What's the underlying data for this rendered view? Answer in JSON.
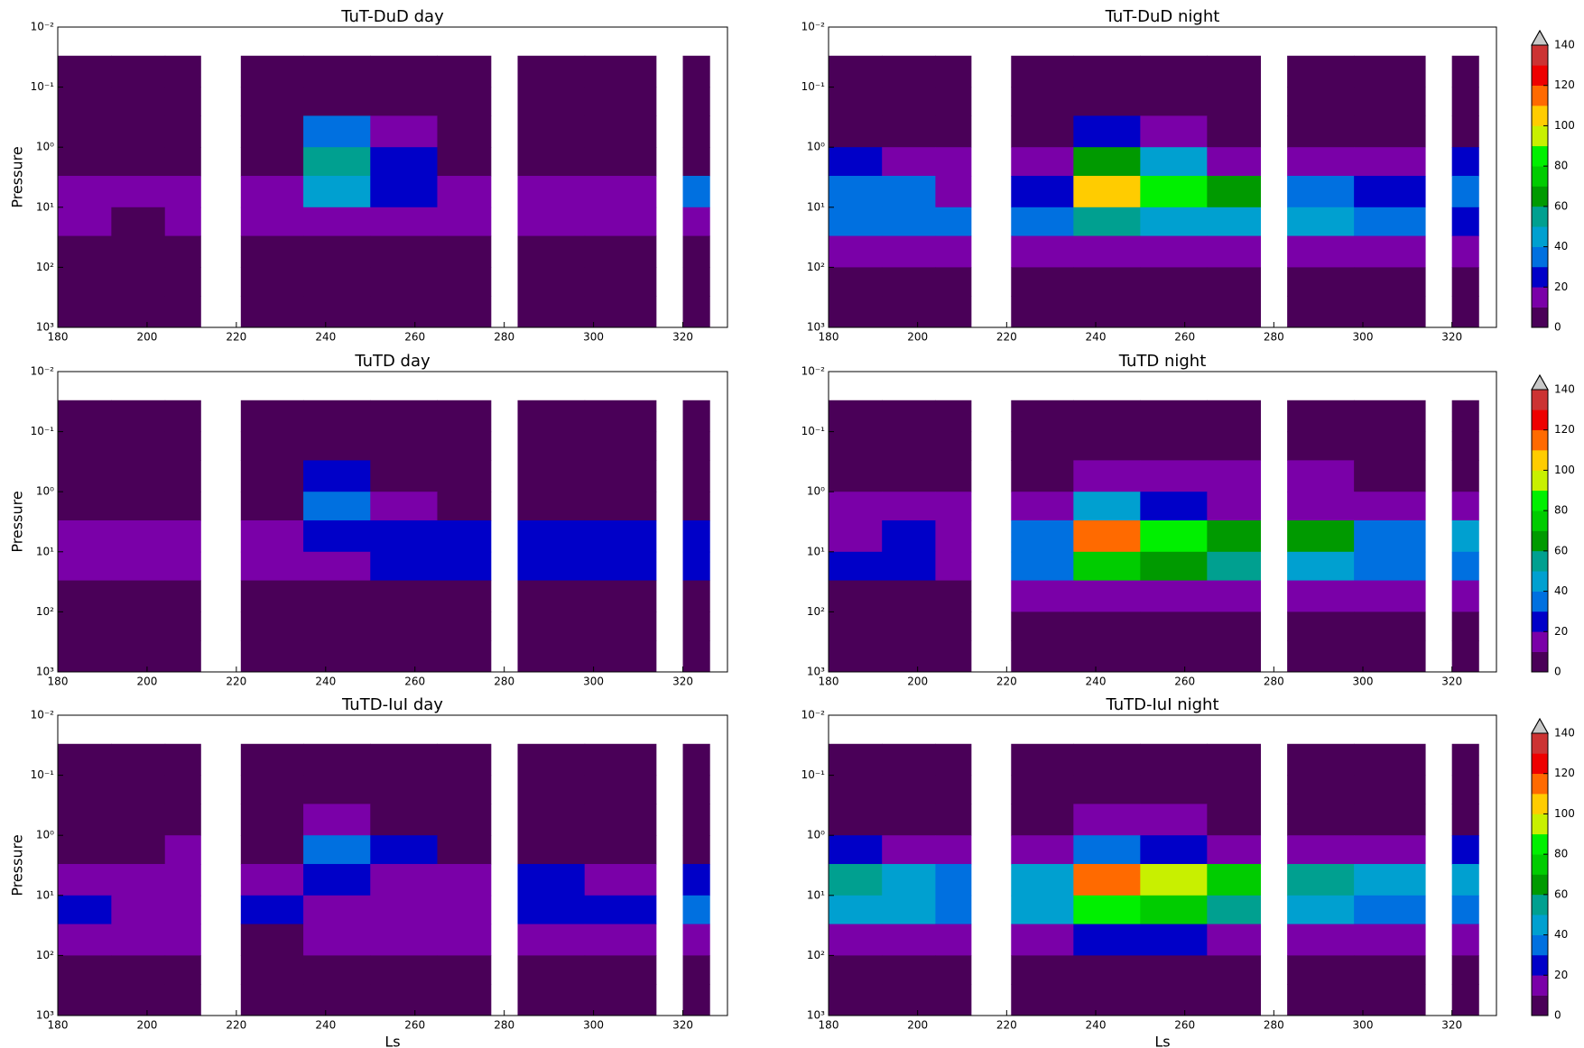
{
  "chart_data": [
    {
      "type": "contour",
      "title": "TuT-DuD day",
      "ylabel": "Pressure",
      "x_bins": [
        180,
        192,
        204,
        212,
        221,
        235,
        250,
        265,
        277,
        283,
        298,
        314,
        320,
        326
      ],
      "y_bins": [
        0.03,
        0.1,
        0.3,
        1,
        3,
        10,
        30,
        100,
        300,
        1000
      ],
      "z": [
        [
          5,
          5,
          5,
          null,
          5,
          5,
          5,
          5,
          null,
          5,
          5,
          null,
          5
        ],
        [
          5,
          5,
          5,
          null,
          5,
          5,
          5,
          5,
          null,
          5,
          5,
          null,
          5
        ],
        [
          5,
          5,
          5,
          null,
          5,
          30,
          15,
          5,
          null,
          5,
          5,
          null,
          5
        ],
        [
          5,
          5,
          5,
          null,
          5,
          55,
          25,
          5,
          null,
          5,
          5,
          null,
          5
        ],
        [
          15,
          15,
          15,
          null,
          15,
          40,
          25,
          15,
          null,
          15,
          15,
          null,
          30
        ],
        [
          15,
          5,
          15,
          null,
          15,
          15,
          15,
          15,
          null,
          15,
          15,
          null,
          15
        ],
        [
          5,
          5,
          5,
          null,
          5,
          5,
          5,
          5,
          null,
          5,
          5,
          null,
          5
        ],
        [
          5,
          5,
          5,
          null,
          5,
          5,
          5,
          5,
          null,
          5,
          5,
          null,
          5
        ],
        [
          5,
          5,
          5,
          null,
          5,
          5,
          5,
          5,
          null,
          5,
          5,
          null,
          5
        ]
      ],
      "xlim": [
        180,
        330
      ],
      "ylim": [
        1000,
        0.01
      ],
      "log_y": true,
      "xticks": [
        180,
        200,
        220,
        240,
        260,
        280,
        300,
        320
      ],
      "yticks": [
        {
          "value": 0.01,
          "label": "10⁻²"
        },
        {
          "value": 0.1,
          "label": "10⁻¹"
        },
        {
          "value": 1,
          "label": "10⁰"
        },
        {
          "value": 10,
          "label": "10¹"
        },
        {
          "value": 100,
          "label": "10²"
        },
        {
          "value": 1000,
          "label": "10³"
        }
      ]
    },
    {
      "type": "contour",
      "title": "TuT-DuD night",
      "x_bins": [
        180,
        192,
        204,
        212,
        221,
        235,
        250,
        265,
        277,
        283,
        298,
        314,
        320,
        326
      ],
      "y_bins": [
        0.03,
        0.1,
        0.3,
        1,
        3,
        10,
        30,
        100,
        300,
        1000
      ],
      "z": [
        [
          5,
          5,
          5,
          null,
          5,
          5,
          5,
          5,
          null,
          5,
          5,
          null,
          5
        ],
        [
          5,
          5,
          5,
          null,
          5,
          5,
          5,
          5,
          null,
          5,
          5,
          null,
          5
        ],
        [
          5,
          5,
          5,
          null,
          5,
          20,
          15,
          5,
          null,
          5,
          5,
          null,
          5
        ],
        [
          25,
          15,
          15,
          null,
          15,
          60,
          40,
          15,
          null,
          15,
          15,
          null,
          25
        ],
        [
          35,
          35,
          15,
          null,
          25,
          100,
          80,
          60,
          null,
          35,
          25,
          null,
          35
        ],
        [
          35,
          35,
          35,
          null,
          35,
          50,
          40,
          40,
          null,
          45,
          35,
          null,
          25
        ],
        [
          15,
          15,
          15,
          null,
          15,
          15,
          15,
          15,
          null,
          15,
          15,
          null,
          15
        ],
        [
          5,
          5,
          5,
          null,
          5,
          5,
          5,
          5,
          null,
          5,
          5,
          null,
          5
        ],
        [
          5,
          5,
          5,
          null,
          5,
          5,
          5,
          5,
          null,
          5,
          5,
          null,
          5
        ]
      ],
      "xlim": [
        180,
        330
      ],
      "ylim": [
        1000,
        0.01
      ],
      "log_y": true,
      "xticks": [
        180,
        200,
        220,
        240,
        260,
        280,
        300,
        320
      ],
      "yticks": [
        {
          "value": 0.01,
          "label": "10⁻²"
        },
        {
          "value": 0.1,
          "label": "10⁻¹"
        },
        {
          "value": 1,
          "label": "10⁰"
        },
        {
          "value": 10,
          "label": "10¹"
        },
        {
          "value": 100,
          "label": "10²"
        },
        {
          "value": 1000,
          "label": "10³"
        }
      ]
    },
    {
      "type": "contour",
      "title": "TuTD day",
      "ylabel": "Pressure",
      "x_bins": [
        180,
        192,
        204,
        212,
        221,
        235,
        250,
        265,
        277,
        283,
        298,
        314,
        320,
        326
      ],
      "y_bins": [
        0.03,
        0.1,
        0.3,
        1,
        3,
        10,
        30,
        100,
        300,
        1000
      ],
      "z": [
        [
          5,
          5,
          5,
          null,
          5,
          5,
          5,
          5,
          null,
          5,
          5,
          null,
          5
        ],
        [
          5,
          5,
          5,
          null,
          5,
          5,
          5,
          5,
          null,
          5,
          5,
          null,
          5
        ],
        [
          5,
          5,
          5,
          null,
          5,
          20,
          5,
          5,
          null,
          5,
          5,
          null,
          5
        ],
        [
          5,
          5,
          5,
          null,
          5,
          30,
          15,
          5,
          null,
          5,
          5,
          null,
          5
        ],
        [
          15,
          15,
          15,
          null,
          15,
          25,
          25,
          25,
          null,
          25,
          25,
          null,
          25
        ],
        [
          15,
          15,
          15,
          null,
          15,
          15,
          25,
          25,
          null,
          25,
          25,
          null,
          25
        ],
        [
          5,
          5,
          5,
          null,
          5,
          5,
          5,
          5,
          null,
          5,
          5,
          null,
          5
        ],
        [
          5,
          5,
          5,
          null,
          5,
          5,
          5,
          5,
          null,
          5,
          5,
          null,
          5
        ],
        [
          5,
          5,
          5,
          null,
          5,
          5,
          5,
          5,
          null,
          5,
          5,
          null,
          5
        ]
      ],
      "xlim": [
        180,
        330
      ],
      "ylim": [
        1000,
        0.01
      ],
      "log_y": true,
      "xticks": [
        180,
        200,
        220,
        240,
        260,
        280,
        300,
        320
      ],
      "yticks": [
        {
          "value": 0.01,
          "label": "10⁻²"
        },
        {
          "value": 0.1,
          "label": "10⁻¹"
        },
        {
          "value": 1,
          "label": "10⁰"
        },
        {
          "value": 10,
          "label": "10¹"
        },
        {
          "value": 100,
          "label": "10²"
        },
        {
          "value": 1000,
          "label": "10³"
        }
      ]
    },
    {
      "type": "contour",
      "title": "TuTD night",
      "x_bins": [
        180,
        192,
        204,
        212,
        221,
        235,
        250,
        265,
        277,
        283,
        298,
        314,
        320,
        326
      ],
      "y_bins": [
        0.03,
        0.1,
        0.3,
        1,
        3,
        10,
        30,
        100,
        300,
        1000
      ],
      "z": [
        [
          5,
          5,
          5,
          null,
          5,
          5,
          5,
          5,
          null,
          5,
          5,
          null,
          5
        ],
        [
          5,
          5,
          5,
          null,
          5,
          5,
          5,
          5,
          null,
          5,
          5,
          null,
          5
        ],
        [
          5,
          5,
          5,
          null,
          5,
          15,
          15,
          15,
          null,
          15,
          5,
          null,
          5
        ],
        [
          15,
          15,
          15,
          null,
          15,
          40,
          25,
          15,
          null,
          15,
          15,
          null,
          15
        ],
        [
          15,
          25,
          15,
          null,
          35,
          110,
          85,
          65,
          null,
          60,
          35,
          null,
          45
        ],
        [
          25,
          25,
          15,
          null,
          35,
          75,
          65,
          50,
          null,
          45,
          35,
          null,
          35
        ],
        [
          5,
          5,
          5,
          null,
          15,
          15,
          15,
          15,
          null,
          15,
          15,
          null,
          15
        ],
        [
          5,
          5,
          5,
          null,
          5,
          5,
          5,
          5,
          null,
          5,
          5,
          null,
          5
        ],
        [
          5,
          5,
          5,
          null,
          5,
          5,
          5,
          5,
          null,
          5,
          5,
          null,
          5
        ]
      ],
      "xlim": [
        180,
        330
      ],
      "ylim": [
        1000,
        0.01
      ],
      "log_y": true,
      "xticks": [
        180,
        200,
        220,
        240,
        260,
        280,
        300,
        320
      ],
      "yticks": [
        {
          "value": 0.01,
          "label": "10⁻²"
        },
        {
          "value": 0.1,
          "label": "10⁻¹"
        },
        {
          "value": 1,
          "label": "10⁰"
        },
        {
          "value": 10,
          "label": "10¹"
        },
        {
          "value": 100,
          "label": "10²"
        },
        {
          "value": 1000,
          "label": "10³"
        }
      ]
    },
    {
      "type": "contour",
      "title": "TuTD-IuI day",
      "ylabel": "Pressure",
      "xlabel": "Ls",
      "x_bins": [
        180,
        192,
        204,
        212,
        221,
        235,
        250,
        265,
        277,
        283,
        298,
        314,
        320,
        326
      ],
      "y_bins": [
        0.03,
        0.1,
        0.3,
        1,
        3,
        10,
        30,
        100,
        300,
        1000
      ],
      "z": [
        [
          5,
          5,
          5,
          null,
          5,
          5,
          5,
          5,
          null,
          5,
          5,
          null,
          5
        ],
        [
          5,
          5,
          5,
          null,
          5,
          5,
          5,
          5,
          null,
          5,
          5,
          null,
          5
        ],
        [
          5,
          5,
          5,
          null,
          5,
          15,
          5,
          5,
          null,
          5,
          5,
          null,
          5
        ],
        [
          5,
          5,
          15,
          null,
          5,
          30,
          25,
          5,
          null,
          5,
          5,
          null,
          5
        ],
        [
          15,
          15,
          15,
          null,
          15,
          25,
          15,
          15,
          null,
          25,
          15,
          null,
          25
        ],
        [
          25,
          15,
          15,
          null,
          25,
          15,
          15,
          15,
          null,
          25,
          25,
          null,
          35
        ],
        [
          15,
          15,
          15,
          null,
          5,
          15,
          15,
          15,
          null,
          15,
          15,
          null,
          15
        ],
        [
          5,
          5,
          5,
          null,
          5,
          5,
          5,
          5,
          null,
          5,
          5,
          null,
          5
        ],
        [
          5,
          5,
          5,
          null,
          5,
          5,
          5,
          5,
          null,
          5,
          5,
          null,
          5
        ]
      ],
      "xlim": [
        180,
        330
      ],
      "ylim": [
        1000,
        0.01
      ],
      "log_y": true,
      "xticks": [
        180,
        200,
        220,
        240,
        260,
        280,
        300,
        320
      ],
      "yticks": [
        {
          "value": 0.01,
          "label": "10⁻²"
        },
        {
          "value": 0.1,
          "label": "10⁻¹"
        },
        {
          "value": 1,
          "label": "10⁰"
        },
        {
          "value": 10,
          "label": "10¹"
        },
        {
          "value": 100,
          "label": "10²"
        },
        {
          "value": 1000,
          "label": "10³"
        }
      ]
    },
    {
      "type": "contour",
      "title": "TuTD-IuI night",
      "xlabel": "Ls",
      "x_bins": [
        180,
        192,
        204,
        212,
        221,
        235,
        250,
        265,
        277,
        283,
        298,
        314,
        320,
        326
      ],
      "y_bins": [
        0.03,
        0.1,
        0.3,
        1,
        3,
        10,
        30,
        100,
        300,
        1000
      ],
      "z": [
        [
          5,
          5,
          5,
          null,
          5,
          5,
          5,
          5,
          null,
          5,
          5,
          null,
          5
        ],
        [
          5,
          5,
          5,
          null,
          5,
          5,
          5,
          5,
          null,
          5,
          5,
          null,
          5
        ],
        [
          5,
          5,
          5,
          null,
          5,
          15,
          15,
          5,
          null,
          5,
          5,
          null,
          5
        ],
        [
          25,
          15,
          15,
          null,
          15,
          35,
          25,
          15,
          null,
          15,
          15,
          null,
          25
        ],
        [
          55,
          45,
          35,
          null,
          45,
          110,
          90,
          75,
          null,
          55,
          40,
          null,
          45
        ],
        [
          45,
          45,
          35,
          null,
          45,
          80,
          70,
          55,
          null,
          45,
          35,
          null,
          35
        ],
        [
          15,
          15,
          15,
          null,
          15,
          25,
          25,
          15,
          null,
          15,
          15,
          null,
          15
        ],
        [
          5,
          5,
          5,
          null,
          5,
          5,
          5,
          5,
          null,
          5,
          5,
          null,
          5
        ],
        [
          5,
          5,
          5,
          null,
          5,
          5,
          5,
          5,
          null,
          5,
          5,
          null,
          5
        ]
      ],
      "xlim": [
        180,
        330
      ],
      "ylim": [
        1000,
        0.01
      ],
      "log_y": true,
      "xticks": [
        180,
        200,
        220,
        240,
        260,
        280,
        300,
        320
      ],
      "yticks": [
        {
          "value": 0.01,
          "label": "10⁻²"
        },
        {
          "value": 0.1,
          "label": "10⁻¹"
        },
        {
          "value": 1,
          "label": "10⁰"
        },
        {
          "value": 10,
          "label": "10¹"
        },
        {
          "value": 100,
          "label": "10²"
        },
        {
          "value": 1000,
          "label": "10³"
        }
      ]
    }
  ],
  "colorbar": {
    "levels": [
      0,
      10,
      20,
      30,
      40,
      50,
      60,
      70,
      80,
      90,
      100,
      110,
      120,
      130,
      140
    ],
    "colors": [
      "#4a0058",
      "#7a00a8",
      "#0000c8",
      "#0070e0",
      "#00a0d0",
      "#00a090",
      "#009a00",
      "#00cc00",
      "#00f000",
      "#c8f000",
      "#ffcc00",
      "#ff6a00",
      "#ee0000",
      "#cc3333"
    ],
    "over_color": "#c8c8c8",
    "ticks": [
      0,
      20,
      40,
      60,
      80,
      100,
      120,
      140
    ]
  }
}
